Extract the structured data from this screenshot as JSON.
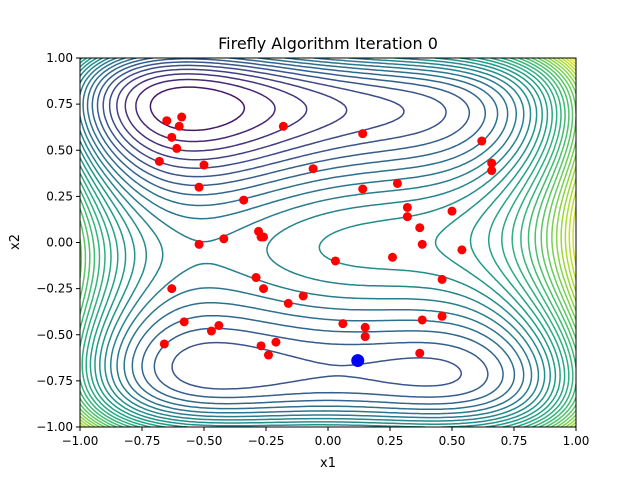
{
  "chart_data": {
    "type": "scatter",
    "title": "Firefly Algorithm Iteration 0",
    "xlabel": "x1",
    "ylabel": "x2",
    "xlim": [
      -1.0,
      1.0
    ],
    "ylim": [
      -1.0,
      1.0
    ],
    "xticks": [
      "−1.00",
      "−0.75",
      "−0.50",
      "−0.25",
      "0.00",
      "0.25",
      "0.50",
      "0.75",
      "1.00"
    ],
    "yticks": [
      "−1.00",
      "−0.75",
      "−0.50",
      "−0.25",
      "0.00",
      "0.25",
      "0.50",
      "0.75",
      "1.00"
    ],
    "background": "contour plot of objective function (viridis colormap)",
    "colors": {
      "fireflies": "#ff0000",
      "best": "#0000ff",
      "contour_low": "#440154",
      "contour_high": "#fde725"
    },
    "series": [
      {
        "role": "fireflies",
        "points": [
          [
            -0.65,
            0.66
          ],
          [
            -0.59,
            0.68
          ],
          [
            -0.6,
            0.63
          ],
          [
            -0.63,
            0.57
          ],
          [
            -0.61,
            0.51
          ],
          [
            -0.68,
            0.44
          ],
          [
            -0.5,
            0.42
          ],
          [
            -0.52,
            0.3
          ],
          [
            -0.34,
            0.23
          ],
          [
            -0.18,
            0.63
          ],
          [
            -0.06,
            0.4
          ],
          [
            0.14,
            0.59
          ],
          [
            0.14,
            0.29
          ],
          [
            0.28,
            0.32
          ],
          [
            0.32,
            0.19
          ],
          [
            0.32,
            0.14
          ],
          [
            0.37,
            0.08
          ],
          [
            0.38,
            -0.01
          ],
          [
            0.5,
            0.17
          ],
          [
            0.62,
            0.55
          ],
          [
            0.66,
            0.43
          ],
          [
            0.66,
            0.39
          ],
          [
            0.54,
            -0.04
          ],
          [
            0.46,
            -0.2
          ],
          [
            0.46,
            -0.4
          ],
          [
            0.38,
            -0.42
          ],
          [
            0.37,
            -0.6
          ],
          [
            0.26,
            -0.08
          ],
          [
            0.03,
            -0.1
          ],
          [
            -0.52,
            -0.01
          ],
          [
            -0.42,
            0.02
          ],
          [
            -0.28,
            0.06
          ],
          [
            -0.26,
            0.03
          ],
          [
            -0.27,
            0.03
          ],
          [
            -0.29,
            -0.19
          ],
          [
            -0.26,
            -0.25
          ],
          [
            -0.63,
            -0.25
          ],
          [
            -0.58,
            -0.43
          ],
          [
            -0.47,
            -0.48
          ],
          [
            -0.44,
            -0.45
          ],
          [
            -0.66,
            -0.55
          ],
          [
            -0.27,
            -0.56
          ],
          [
            -0.24,
            -0.61
          ],
          [
            -0.21,
            -0.54
          ],
          [
            -0.16,
            -0.33
          ],
          [
            -0.1,
            -0.29
          ],
          [
            0.06,
            -0.44
          ],
          [
            0.15,
            -0.46
          ],
          [
            0.15,
            -0.51
          ]
        ]
      },
      {
        "role": "best",
        "points": [
          [
            0.12,
            -0.64
          ]
        ]
      }
    ]
  }
}
